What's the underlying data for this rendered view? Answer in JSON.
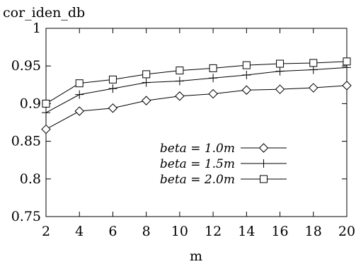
{
  "chart_data": {
    "type": "line",
    "title": "",
    "ylabel": "cor_iden_db",
    "xlabel": "m",
    "x": [
      2,
      4,
      6,
      8,
      10,
      12,
      14,
      16,
      18,
      20
    ],
    "xlim": [
      2,
      20
    ],
    "ylim": [
      0.75,
      1.0
    ],
    "xticks": [
      "2",
      "4",
      "6",
      "8",
      "10",
      "12",
      "14",
      "16",
      "18",
      "20"
    ],
    "yticks": [
      "0.75",
      "0.8",
      "0.85",
      "0.9",
      "0.95",
      "1"
    ],
    "grid": false,
    "legend_position": "lower-right",
    "series": [
      {
        "name": "beta = 1.0m",
        "marker": "diamond",
        "values": [
          0.866,
          0.89,
          0.894,
          0.904,
          0.91,
          0.913,
          0.918,
          0.919,
          0.921,
          0.924
        ]
      },
      {
        "name": "beta = 1.5m",
        "marker": "plus",
        "values": [
          0.888,
          0.912,
          0.92,
          0.928,
          0.93,
          0.934,
          0.938,
          0.943,
          0.945,
          0.948
        ]
      },
      {
        "name": "beta = 2.0m",
        "marker": "square",
        "values": [
          0.9,
          0.927,
          0.932,
          0.939,
          0.944,
          0.947,
          0.951,
          0.953,
          0.954,
          0.956
        ]
      }
    ],
    "colors": {
      "line": "#000000",
      "background": "#ffffff"
    }
  }
}
